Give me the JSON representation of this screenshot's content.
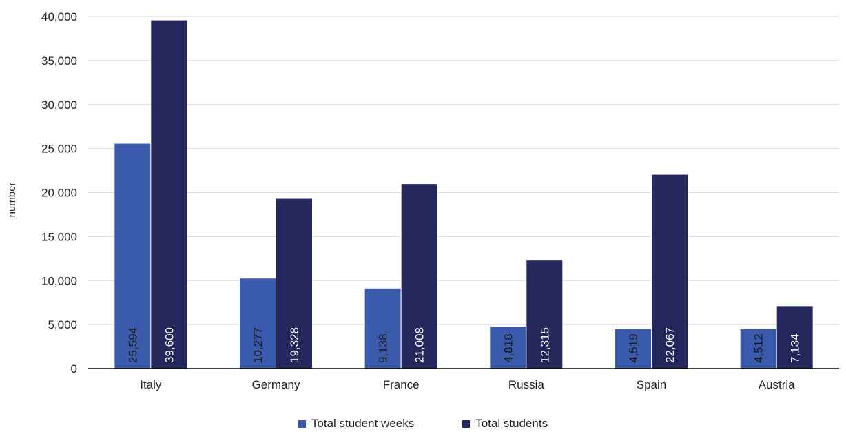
{
  "chart_data": {
    "type": "bar",
    "ylabel": "number",
    "xlabel": "",
    "ylim": [
      0,
      40000
    ],
    "yticks": [
      0,
      5000,
      10000,
      15000,
      20000,
      25000,
      30000,
      35000,
      40000
    ],
    "ytick_labels": [
      "0",
      "5,000",
      "10,000",
      "15,000",
      "20,000",
      "25,000",
      "30,000",
      "35,000",
      "40,000"
    ],
    "grid": true,
    "legend_position": "bottom",
    "categories": [
      "Italy",
      "Germany",
      "France",
      "Russia",
      "Spain",
      "Austria"
    ],
    "series": [
      {
        "name": "Total student weeks",
        "color": "#3a5bab",
        "values": [
          25594,
          10277,
          9138,
          4818,
          4519,
          4512
        ],
        "labels": [
          "25,594",
          "10,277",
          "9,138",
          "4,818",
          "4,519",
          "4,512"
        ],
        "label_color": "#1a1a1a"
      },
      {
        "name": "Total students",
        "color": "#24275c",
        "values": [
          39600,
          19328,
          21008,
          12315,
          22067,
          7134
        ],
        "labels": [
          "39,600",
          "19,328",
          "21,008",
          "12,315",
          "22,067",
          "7,134"
        ],
        "label_color": "#ffffff"
      }
    ]
  }
}
